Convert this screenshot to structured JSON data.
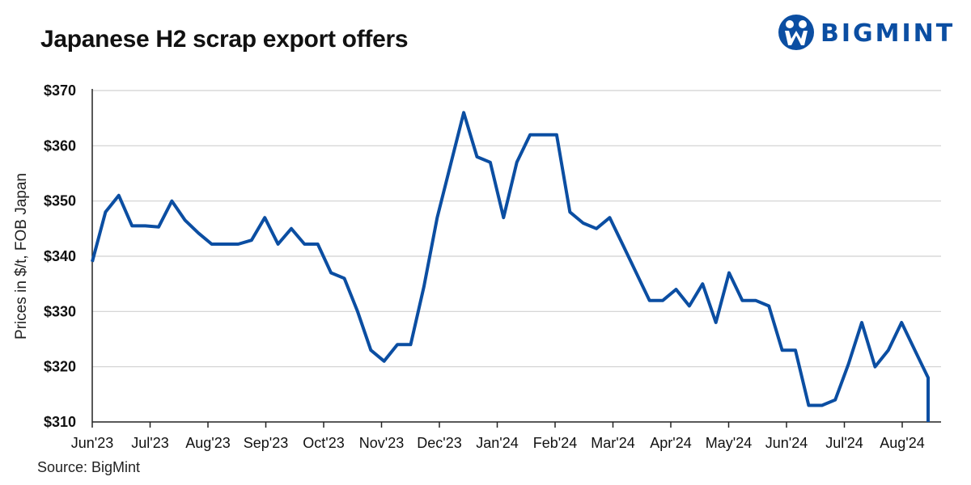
{
  "header": {
    "title": "Japanese H2 scrap export offers"
  },
  "logo": {
    "text": "BIGMINT",
    "color": "#0b4ea2"
  },
  "footer": {
    "source": "Source: BigMint"
  },
  "colors": {
    "line": "#0b4ea2",
    "grid": "#d0d0d0",
    "axis": "#222222"
  },
  "chart_data": {
    "type": "line",
    "title": "Japanese H2 scrap export offers",
    "xlabel": "",
    "ylabel": "Prices in $/t, FOB Japan",
    "ylim": [
      310,
      370
    ],
    "yticks": [
      310,
      320,
      330,
      340,
      350,
      360,
      370
    ],
    "ytick_labels": [
      "$310",
      "$320",
      "$330",
      "$340",
      "$350",
      "$360",
      "$370"
    ],
    "grid": true,
    "xtick_labels": [
      "Jun'23",
      "Jul'23",
      "Aug'23",
      "Sep'23",
      "Oct'23",
      "Nov'23",
      "Dec'23",
      "Jan'24",
      "Feb'24",
      "Mar'24",
      "Apr'24",
      "May'24",
      "Jun'24",
      "Jul'24",
      "Aug'24"
    ],
    "series": [
      {
        "values": [
          339,
          348,
          351,
          345.5,
          345.5,
          345.3,
          350,
          346.5,
          344.2,
          342.2,
          342.2,
          342.2,
          342.9,
          347,
          342.2,
          345,
          342.2,
          342.2,
          337,
          336,
          330,
          323,
          321,
          324,
          324,
          334.5,
          347,
          356.5,
          366,
          358,
          357,
          347,
          357,
          362,
          362,
          362,
          348,
          346,
          345,
          347,
          342,
          337,
          332,
          332,
          334,
          331,
          335,
          328,
          337,
          332,
          332,
          331,
          323,
          323,
          313,
          313,
          314,
          320.5,
          328,
          320,
          323,
          328,
          323,
          318,
          310
        ]
      }
    ]
  }
}
